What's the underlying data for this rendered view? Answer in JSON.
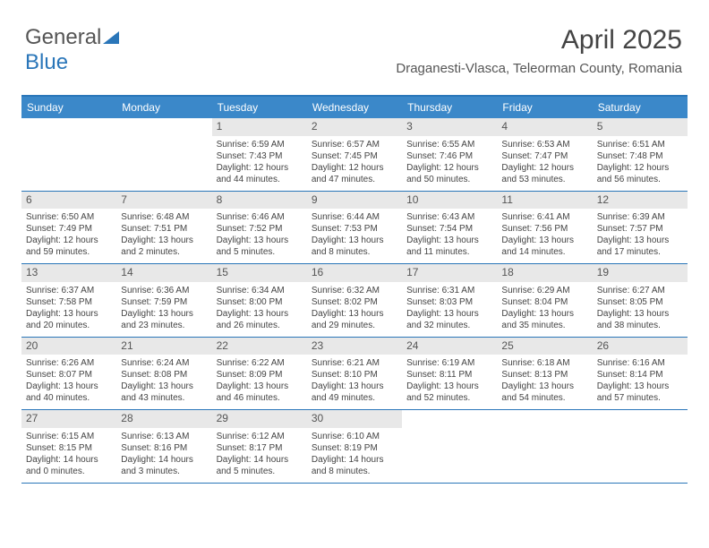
{
  "logo": {
    "text1": "General",
    "text2": "Blue"
  },
  "header": {
    "month": "April 2025",
    "location": "Draganesti-Vlasca, Teleorman County, Romania"
  },
  "colors": {
    "header_bg": "#3b88c9",
    "border": "#2a76b9",
    "daynum_bg": "#e8e8e8",
    "text": "#444444"
  },
  "day_names": [
    "Sunday",
    "Monday",
    "Tuesday",
    "Wednesday",
    "Thursday",
    "Friday",
    "Saturday"
  ],
  "weeks": [
    [
      {
        "n": "",
        "sr": "",
        "ss": "",
        "dl1": "",
        "dl2": ""
      },
      {
        "n": "",
        "sr": "",
        "ss": "",
        "dl1": "",
        "dl2": ""
      },
      {
        "n": "1",
        "sr": "Sunrise: 6:59 AM",
        "ss": "Sunset: 7:43 PM",
        "dl1": "Daylight: 12 hours",
        "dl2": "and 44 minutes."
      },
      {
        "n": "2",
        "sr": "Sunrise: 6:57 AM",
        "ss": "Sunset: 7:45 PM",
        "dl1": "Daylight: 12 hours",
        "dl2": "and 47 minutes."
      },
      {
        "n": "3",
        "sr": "Sunrise: 6:55 AM",
        "ss": "Sunset: 7:46 PM",
        "dl1": "Daylight: 12 hours",
        "dl2": "and 50 minutes."
      },
      {
        "n": "4",
        "sr": "Sunrise: 6:53 AM",
        "ss": "Sunset: 7:47 PM",
        "dl1": "Daylight: 12 hours",
        "dl2": "and 53 minutes."
      },
      {
        "n": "5",
        "sr": "Sunrise: 6:51 AM",
        "ss": "Sunset: 7:48 PM",
        "dl1": "Daylight: 12 hours",
        "dl2": "and 56 minutes."
      }
    ],
    [
      {
        "n": "6",
        "sr": "Sunrise: 6:50 AM",
        "ss": "Sunset: 7:49 PM",
        "dl1": "Daylight: 12 hours",
        "dl2": "and 59 minutes."
      },
      {
        "n": "7",
        "sr": "Sunrise: 6:48 AM",
        "ss": "Sunset: 7:51 PM",
        "dl1": "Daylight: 13 hours",
        "dl2": "and 2 minutes."
      },
      {
        "n": "8",
        "sr": "Sunrise: 6:46 AM",
        "ss": "Sunset: 7:52 PM",
        "dl1": "Daylight: 13 hours",
        "dl2": "and 5 minutes."
      },
      {
        "n": "9",
        "sr": "Sunrise: 6:44 AM",
        "ss": "Sunset: 7:53 PM",
        "dl1": "Daylight: 13 hours",
        "dl2": "and 8 minutes."
      },
      {
        "n": "10",
        "sr": "Sunrise: 6:43 AM",
        "ss": "Sunset: 7:54 PM",
        "dl1": "Daylight: 13 hours",
        "dl2": "and 11 minutes."
      },
      {
        "n": "11",
        "sr": "Sunrise: 6:41 AM",
        "ss": "Sunset: 7:56 PM",
        "dl1": "Daylight: 13 hours",
        "dl2": "and 14 minutes."
      },
      {
        "n": "12",
        "sr": "Sunrise: 6:39 AM",
        "ss": "Sunset: 7:57 PM",
        "dl1": "Daylight: 13 hours",
        "dl2": "and 17 minutes."
      }
    ],
    [
      {
        "n": "13",
        "sr": "Sunrise: 6:37 AM",
        "ss": "Sunset: 7:58 PM",
        "dl1": "Daylight: 13 hours",
        "dl2": "and 20 minutes."
      },
      {
        "n": "14",
        "sr": "Sunrise: 6:36 AM",
        "ss": "Sunset: 7:59 PM",
        "dl1": "Daylight: 13 hours",
        "dl2": "and 23 minutes."
      },
      {
        "n": "15",
        "sr": "Sunrise: 6:34 AM",
        "ss": "Sunset: 8:00 PM",
        "dl1": "Daylight: 13 hours",
        "dl2": "and 26 minutes."
      },
      {
        "n": "16",
        "sr": "Sunrise: 6:32 AM",
        "ss": "Sunset: 8:02 PM",
        "dl1": "Daylight: 13 hours",
        "dl2": "and 29 minutes."
      },
      {
        "n": "17",
        "sr": "Sunrise: 6:31 AM",
        "ss": "Sunset: 8:03 PM",
        "dl1": "Daylight: 13 hours",
        "dl2": "and 32 minutes."
      },
      {
        "n": "18",
        "sr": "Sunrise: 6:29 AM",
        "ss": "Sunset: 8:04 PM",
        "dl1": "Daylight: 13 hours",
        "dl2": "and 35 minutes."
      },
      {
        "n": "19",
        "sr": "Sunrise: 6:27 AM",
        "ss": "Sunset: 8:05 PM",
        "dl1": "Daylight: 13 hours",
        "dl2": "and 38 minutes."
      }
    ],
    [
      {
        "n": "20",
        "sr": "Sunrise: 6:26 AM",
        "ss": "Sunset: 8:07 PM",
        "dl1": "Daylight: 13 hours",
        "dl2": "and 40 minutes."
      },
      {
        "n": "21",
        "sr": "Sunrise: 6:24 AM",
        "ss": "Sunset: 8:08 PM",
        "dl1": "Daylight: 13 hours",
        "dl2": "and 43 minutes."
      },
      {
        "n": "22",
        "sr": "Sunrise: 6:22 AM",
        "ss": "Sunset: 8:09 PM",
        "dl1": "Daylight: 13 hours",
        "dl2": "and 46 minutes."
      },
      {
        "n": "23",
        "sr": "Sunrise: 6:21 AM",
        "ss": "Sunset: 8:10 PM",
        "dl1": "Daylight: 13 hours",
        "dl2": "and 49 minutes."
      },
      {
        "n": "24",
        "sr": "Sunrise: 6:19 AM",
        "ss": "Sunset: 8:11 PM",
        "dl1": "Daylight: 13 hours",
        "dl2": "and 52 minutes."
      },
      {
        "n": "25",
        "sr": "Sunrise: 6:18 AM",
        "ss": "Sunset: 8:13 PM",
        "dl1": "Daylight: 13 hours",
        "dl2": "and 54 minutes."
      },
      {
        "n": "26",
        "sr": "Sunrise: 6:16 AM",
        "ss": "Sunset: 8:14 PM",
        "dl1": "Daylight: 13 hours",
        "dl2": "and 57 minutes."
      }
    ],
    [
      {
        "n": "27",
        "sr": "Sunrise: 6:15 AM",
        "ss": "Sunset: 8:15 PM",
        "dl1": "Daylight: 14 hours",
        "dl2": "and 0 minutes."
      },
      {
        "n": "28",
        "sr": "Sunrise: 6:13 AM",
        "ss": "Sunset: 8:16 PM",
        "dl1": "Daylight: 14 hours",
        "dl2": "and 3 minutes."
      },
      {
        "n": "29",
        "sr": "Sunrise: 6:12 AM",
        "ss": "Sunset: 8:17 PM",
        "dl1": "Daylight: 14 hours",
        "dl2": "and 5 minutes."
      },
      {
        "n": "30",
        "sr": "Sunrise: 6:10 AM",
        "ss": "Sunset: 8:19 PM",
        "dl1": "Daylight: 14 hours",
        "dl2": "and 8 minutes."
      },
      {
        "n": "",
        "sr": "",
        "ss": "",
        "dl1": "",
        "dl2": ""
      },
      {
        "n": "",
        "sr": "",
        "ss": "",
        "dl1": "",
        "dl2": ""
      },
      {
        "n": "",
        "sr": "",
        "ss": "",
        "dl1": "",
        "dl2": ""
      }
    ]
  ]
}
